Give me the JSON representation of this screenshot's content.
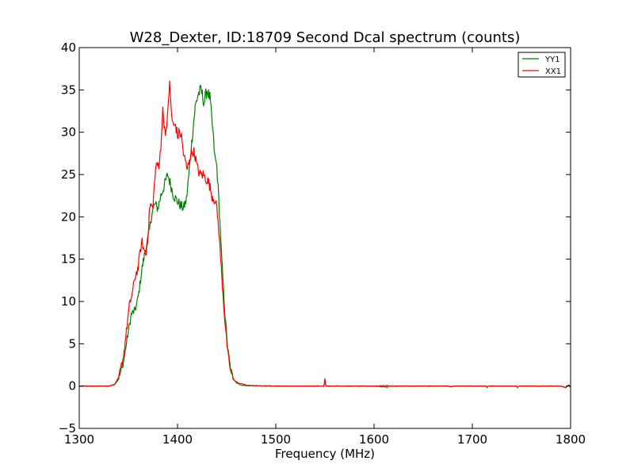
{
  "chart_data": {
    "type": "line",
    "title": "W28_Dexter, ID:18709 Second Dcal spectrum (counts)",
    "xlabel": "Frequency (MHz)",
    "ylabel": "",
    "xlim": [
      1300,
      1800
    ],
    "ylim": [
      -5,
      40
    ],
    "xticks": [
      "1300",
      "1400",
      "1500",
      "1600",
      "1700",
      "1800"
    ],
    "yticks": [
      "−5",
      "0",
      "5",
      "10",
      "15",
      "20",
      "25",
      "30",
      "35",
      "40"
    ],
    "grid": false,
    "legend_position": "top-right",
    "series": [
      {
        "name": "YY1",
        "color": "#008000",
        "points": [
          [
            1300,
            0
          ],
          [
            1330,
            0
          ],
          [
            1336,
            0.2
          ],
          [
            1340,
            0.8
          ],
          [
            1345,
            2.8
          ],
          [
            1350,
            6.5
          ],
          [
            1353,
            8.5
          ],
          [
            1357,
            9
          ],
          [
            1360,
            10.5
          ],
          [
            1364,
            14
          ],
          [
            1368,
            16.5
          ],
          [
            1371,
            18
          ],
          [
            1374,
            20.5
          ],
          [
            1377,
            21.5
          ],
          [
            1380,
            21
          ],
          [
            1383,
            22.5
          ],
          [
            1386,
            23.5
          ],
          [
            1390,
            25
          ],
          [
            1393,
            23.8
          ],
          [
            1396,
            22.5
          ],
          [
            1399,
            22
          ],
          [
            1402,
            21.5
          ],
          [
            1406,
            21
          ],
          [
            1409,
            22
          ],
          [
            1412,
            25.5
          ],
          [
            1415,
            29.5
          ],
          [
            1418,
            33
          ],
          [
            1421,
            34.5
          ],
          [
            1424,
            35
          ],
          [
            1427,
            33.5
          ],
          [
            1430,
            35
          ],
          [
            1433,
            34
          ],
          [
            1436,
            30
          ],
          [
            1438,
            27
          ],
          [
            1440,
            26
          ],
          [
            1442,
            22
          ],
          [
            1445,
            15
          ],
          [
            1448,
            9
          ],
          [
            1451,
            4.5
          ],
          [
            1454,
            2
          ],
          [
            1457,
            0.8
          ],
          [
            1460,
            0.4
          ],
          [
            1465,
            0.1
          ],
          [
            1470,
            0.05
          ],
          [
            1500,
            0
          ],
          [
            1549,
            0
          ],
          [
            1550,
            0.6
          ],
          [
            1551,
            0
          ],
          [
            1600,
            0
          ],
          [
            1611,
            -0.1
          ],
          [
            1613,
            0.1
          ],
          [
            1615,
            0
          ],
          [
            1675,
            0
          ],
          [
            1678,
            -0.1
          ],
          [
            1681,
            0
          ],
          [
            1714,
            0
          ],
          [
            1715,
            -0.2
          ],
          [
            1716,
            0
          ],
          [
            1745,
            0
          ],
          [
            1746,
            -0.15
          ],
          [
            1747,
            0
          ],
          [
            1790,
            0
          ],
          [
            1795,
            -0.2
          ],
          [
            1798,
            0.15
          ],
          [
            1800,
            -0.1
          ]
        ]
      },
      {
        "name": "XX1",
        "color": "#ff0000",
        "points": [
          [
            1300,
            0
          ],
          [
            1330,
            0
          ],
          [
            1336,
            0.2
          ],
          [
            1340,
            1
          ],
          [
            1345,
            3.5
          ],
          [
            1348,
            6.5
          ],
          [
            1351,
            9.5
          ],
          [
            1354,
            11
          ],
          [
            1357,
            13
          ],
          [
            1360,
            14
          ],
          [
            1362,
            16
          ],
          [
            1364,
            17
          ],
          [
            1366,
            16
          ],
          [
            1368,
            15.5
          ],
          [
            1370,
            18
          ],
          [
            1372,
            21.5
          ],
          [
            1375,
            21
          ],
          [
            1377,
            25
          ],
          [
            1379,
            26.5
          ],
          [
            1381,
            25.5
          ],
          [
            1383,
            28.5
          ],
          [
            1385,
            32.5
          ],
          [
            1387,
            30.5
          ],
          [
            1389,
            30
          ],
          [
            1391,
            34.5
          ],
          [
            1392,
            35.5
          ],
          [
            1394,
            32
          ],
          [
            1396,
            30.5
          ],
          [
            1398,
            31
          ],
          [
            1400,
            29.5
          ],
          [
            1402,
            30
          ],
          [
            1404,
            29.5
          ],
          [
            1406,
            27.5
          ],
          [
            1408,
            26.5
          ],
          [
            1410,
            25.5
          ],
          [
            1412,
            27
          ],
          [
            1414,
            27.5
          ],
          [
            1416,
            27.8
          ],
          [
            1418,
            27.2
          ],
          [
            1420,
            25.8
          ],
          [
            1423,
            25
          ],
          [
            1426,
            25
          ],
          [
            1429,
            24.5
          ],
          [
            1432,
            24
          ],
          [
            1435,
            22.5
          ],
          [
            1438,
            22
          ],
          [
            1440,
            21
          ],
          [
            1442,
            18.5
          ],
          [
            1445,
            13
          ],
          [
            1448,
            8
          ],
          [
            1451,
            4
          ],
          [
            1454,
            1.8
          ],
          [
            1457,
            0.8
          ],
          [
            1460,
            0.5
          ],
          [
            1463,
            0.3
          ],
          [
            1467,
            0.25
          ],
          [
            1470,
            0.1
          ],
          [
            1480,
            0.05
          ],
          [
            1500,
            0
          ],
          [
            1549,
            0
          ],
          [
            1550,
            0.9
          ],
          [
            1551,
            0
          ],
          [
            1600,
            0
          ],
          [
            1611,
            0.05
          ],
          [
            1613,
            -0.15
          ],
          [
            1615,
            0
          ],
          [
            1675,
            0
          ],
          [
            1678,
            -0.05
          ],
          [
            1681,
            0
          ],
          [
            1714,
            0
          ],
          [
            1715,
            -0.15
          ],
          [
            1716,
            0
          ],
          [
            1745,
            0
          ],
          [
            1746,
            -0.2
          ],
          [
            1747,
            0
          ],
          [
            1790,
            0
          ],
          [
            1795,
            -0.15
          ],
          [
            1798,
            0.1
          ],
          [
            1800,
            -0.1
          ]
        ]
      }
    ]
  }
}
